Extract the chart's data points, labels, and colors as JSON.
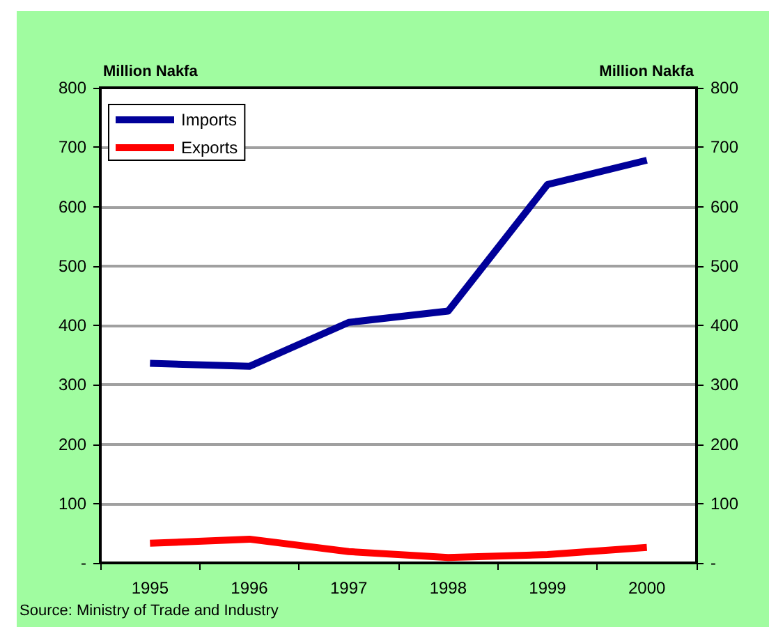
{
  "chart_data": {
    "type": "line",
    "ylabel": "Million Nakfa",
    "y2label": "Million Nakfa",
    "categories": [
      "1995",
      "1996",
      "1997",
      "1998",
      "1999",
      "2000"
    ],
    "series": [
      {
        "name": "Imports",
        "color": "#000099",
        "values": [
          336,
          331,
          405,
          424,
          637,
          678
        ]
      },
      {
        "name": "Exports",
        "color": "#ff0000",
        "values": [
          33,
          40,
          19,
          9,
          14,
          26
        ]
      }
    ],
    "ylim": [
      0,
      800
    ],
    "yticks": [
      {
        "value": 0,
        "label": "-"
      },
      100,
      200,
      300,
      400,
      500,
      600,
      700,
      800
    ],
    "y2lim": [
      0,
      800
    ],
    "y2ticks": [
      {
        "value": 0,
        "label": "-"
      },
      100,
      200,
      300,
      400,
      500,
      600,
      700,
      800
    ],
    "grid": "y",
    "legend": "top left",
    "marker": "none",
    "line_style": "solid",
    "annotations": [
      "Source: Ministry of Trade and Industry"
    ]
  }
}
